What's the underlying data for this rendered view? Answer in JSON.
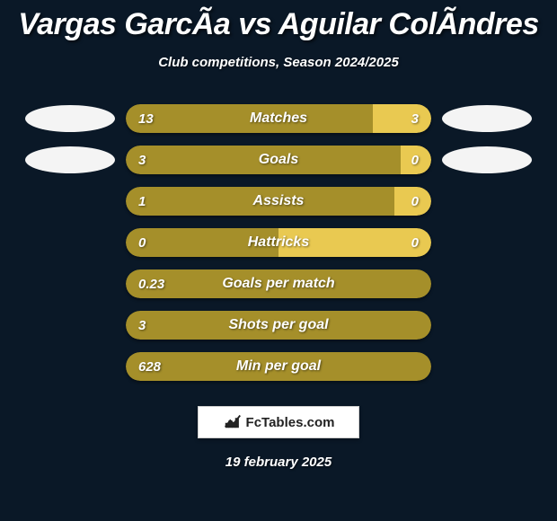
{
  "header": {
    "title": "Vargas GarcÃ­a vs Aguilar ColÃ­ndres",
    "subtitle": "Club competitions, Season 2024/2025"
  },
  "players": {
    "left_ellipse_color": "#f4f4f4",
    "right_ellipse_color": "#f4f4f4"
  },
  "colors": {
    "left_bar": "#a58f2a",
    "right_bar": "#e9c951",
    "neutral_bar": "#a58f2a",
    "background": "#0a1827",
    "text": "#ffffff"
  },
  "stats": [
    {
      "label": "Matches",
      "left_value": "13",
      "right_value": "3",
      "left_pct": 81,
      "right_pct": 19,
      "show_ellipses": true
    },
    {
      "label": "Goals",
      "left_value": "3",
      "right_value": "0",
      "left_pct": 90,
      "right_pct": 10,
      "show_ellipses": true
    },
    {
      "label": "Assists",
      "left_value": "1",
      "right_value": "0",
      "left_pct": 88,
      "right_pct": 12,
      "show_ellipses": false
    },
    {
      "label": "Hattricks",
      "left_value": "0",
      "right_value": "0",
      "left_pct": 50,
      "right_pct": 50,
      "show_ellipses": false
    },
    {
      "label": "Goals per match",
      "left_value": "0.23",
      "right_value": "",
      "left_pct": 100,
      "right_pct": 0,
      "show_ellipses": false
    },
    {
      "label": "Shots per goal",
      "left_value": "3",
      "right_value": "",
      "left_pct": 100,
      "right_pct": 0,
      "show_ellipses": false
    },
    {
      "label": "Min per goal",
      "left_value": "628",
      "right_value": "",
      "left_pct": 100,
      "right_pct": 0,
      "show_ellipses": false
    }
  ],
  "badge": {
    "text": "FcTables.com"
  },
  "date": "19 february 2025"
}
